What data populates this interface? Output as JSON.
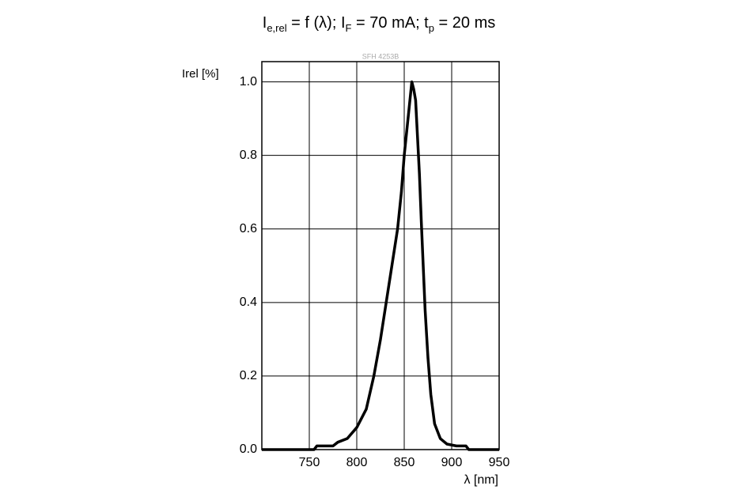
{
  "chart_data": {
    "type": "line",
    "title": [
      {
        "text": "I",
        "subscript": false
      },
      {
        "text": "e,rel",
        "subscript": true
      },
      {
        "text": " = f (λ); I",
        "subscript": false
      },
      {
        "text": "F",
        "subscript": true
      },
      {
        "text": " = 70 mA; t",
        "subscript": false
      },
      {
        "text": "p",
        "subscript": true
      },
      {
        "text": " = 20 ms",
        "subscript": false
      }
    ],
    "watermark": "SFH 4253B",
    "y_label": "Irel [%]",
    "x_label": "λ [nm]",
    "xlim": [
      700,
      950
    ],
    "xticks": [
      750,
      800,
      850,
      900,
      950
    ],
    "ylim": [
      0,
      1.055
    ],
    "yticks": [
      {
        "value": 0,
        "label": "0.0"
      },
      {
        "value": 0.2,
        "label": "0.2"
      },
      {
        "value": 0.4,
        "label": "0.4"
      },
      {
        "value": 0.6,
        "label": "0.6"
      },
      {
        "value": 0.8,
        "label": "0.8"
      },
      {
        "value": 1,
        "label": "1.0"
      }
    ],
    "grid": true,
    "series": [
      {
        "color": "#000000",
        "x": [
          700,
          755,
          758,
          775,
          780,
          790,
          800,
          810,
          818,
          825,
          831,
          837,
          843,
          847,
          850,
          854,
          858,
          860,
          862,
          864,
          866,
          868,
          870,
          872,
          875,
          878,
          882,
          888,
          895,
          905,
          915,
          918,
          950
        ],
        "values": [
          0,
          0,
          0.01,
          0.01,
          0.02,
          0.03,
          0.06,
          0.11,
          0.2,
          0.3,
          0.4,
          0.5,
          0.6,
          0.7,
          0.8,
          0.9,
          1.0,
          0.98,
          0.95,
          0.85,
          0.75,
          0.62,
          0.5,
          0.38,
          0.25,
          0.15,
          0.07,
          0.03,
          0.015,
          0.01,
          0.01,
          0,
          0
        ]
      }
    ]
  }
}
